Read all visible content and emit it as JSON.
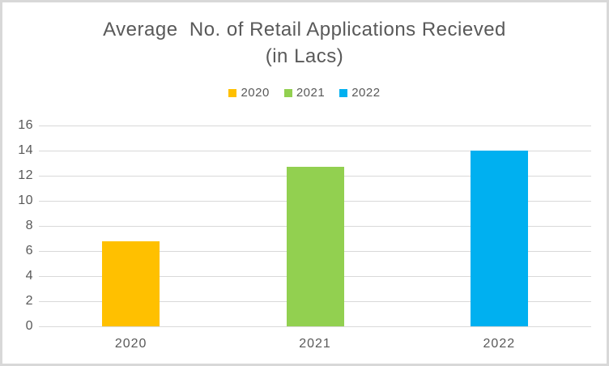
{
  "frame": {
    "background": "#ffffff",
    "border_color": "#d8d8d8"
  },
  "chart_data": {
    "type": "bar",
    "title": "Average  No. of Retail Applications Recieved (in Lacs)",
    "title_lines": [
      "Average  No. of Retail Applications Recieved",
      "(in Lacs)"
    ],
    "categories": [
      "2020",
      "2021",
      "2022"
    ],
    "values": [
      6.8,
      12.7,
      14
    ],
    "colors": [
      "#ffc000",
      "#92d050",
      "#00b0f0"
    ],
    "legend": [
      {
        "label": "2020",
        "color": "#ffc000"
      },
      {
        "label": "2021",
        "color": "#92d050"
      },
      {
        "label": "2022",
        "color": "#00b0f0"
      }
    ],
    "legend_position": "top",
    "xlabel": "",
    "ylabel": "",
    "ylim": [
      0,
      16
    ],
    "yticks": [
      0,
      2,
      4,
      6,
      8,
      10,
      12,
      14,
      16
    ],
    "grid": true,
    "grid_color": "#d9d9d9",
    "text_color": "#595959"
  }
}
